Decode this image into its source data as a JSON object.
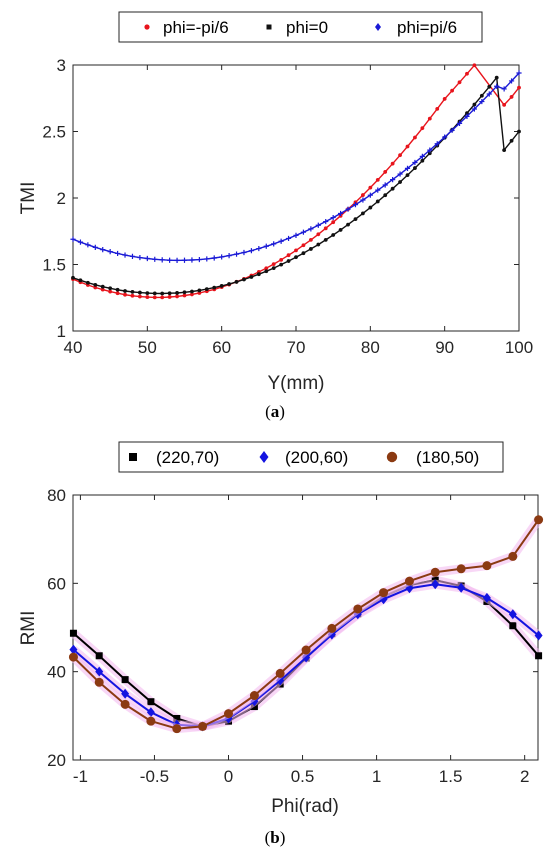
{
  "chart_data": [
    {
      "type": "line",
      "caption_open": "(",
      "caption_letter": "a",
      "caption_close": ")",
      "xlabel": "Y(mm)",
      "ylabel": "TMI",
      "xlim": [
        40,
        100
      ],
      "ylim": [
        1,
        3
      ],
      "xticks": [
        "40",
        "50",
        "60",
        "70",
        "80",
        "90",
        "100"
      ],
      "yticks": [
        "1",
        "1.5",
        "2",
        "2.5",
        "3"
      ],
      "legend_position": "top",
      "x": [
        40,
        41,
        42,
        43,
        44,
        45,
        46,
        47,
        48,
        49,
        50,
        51,
        52,
        53,
        54,
        55,
        56,
        57,
        58,
        59,
        60,
        61,
        62,
        63,
        64,
        65,
        66,
        67,
        68,
        69,
        70,
        71,
        72,
        73,
        74,
        75,
        76,
        77,
        78,
        79,
        80,
        81,
        82,
        83,
        84,
        85,
        86,
        87,
        88,
        89,
        90,
        91,
        92,
        93,
        94,
        95,
        96,
        97,
        98,
        99,
        100
      ],
      "series": [
        {
          "name": "phi=-pi/6",
          "color": "#e8141c",
          "marker": "dot",
          "values": [
            1.39,
            1.367,
            1.346,
            1.327,
            1.311,
            1.296,
            1.284,
            1.273,
            1.265,
            1.259,
            1.255,
            1.253,
            1.253,
            1.256,
            1.26,
            1.267,
            1.275,
            1.286,
            1.299,
            1.313,
            1.33,
            1.349,
            1.37,
            1.392,
            1.417,
            1.444,
            1.472,
            1.503,
            1.535,
            1.57,
            1.606,
            1.645,
            1.685,
            1.727,
            1.772,
            1.818,
            1.866,
            1.916,
            1.968,
            2.022,
            2.078,
            2.136,
            2.196,
            2.258,
            2.322,
            2.387,
            2.455,
            2.525,
            2.597,
            2.67,
            2.745,
            2.807,
            2.87,
            2.934,
            2.998,
            3.063,
            3.129,
            3.195,
            2.7,
            2.76,
            2.83
          ]
        },
        {
          "name": "phi=0",
          "color": "#111111",
          "marker": "dot",
          "values": [
            1.4,
            1.381,
            1.363,
            1.347,
            1.333,
            1.321,
            1.31,
            1.301,
            1.294,
            1.289,
            1.285,
            1.283,
            1.282,
            1.284,
            1.286,
            1.291,
            1.297,
            1.305,
            1.315,
            1.326,
            1.339,
            1.353,
            1.369,
            1.387,
            1.406,
            1.427,
            1.449,
            1.473,
            1.499,
            1.526,
            1.555,
            1.585,
            1.617,
            1.65,
            1.685,
            1.722,
            1.76,
            1.8,
            1.841,
            1.884,
            1.928,
            1.974,
            2.021,
            2.07,
            2.12,
            2.172,
            2.225,
            2.28,
            2.336,
            2.394,
            2.453,
            2.513,
            2.575,
            2.638,
            2.703,
            2.769,
            2.836,
            2.905,
            2.36,
            2.43,
            2.5
          ]
        },
        {
          "name": "phi=pi/6",
          "color": "#1a1ad6",
          "marker": "plus",
          "values": [
            1.69,
            1.668,
            1.648,
            1.629,
            1.612,
            1.597,
            1.583,
            1.571,
            1.561,
            1.552,
            1.545,
            1.539,
            1.535,
            1.532,
            1.531,
            1.532,
            1.534,
            1.537,
            1.542,
            1.549,
            1.557,
            1.567,
            1.578,
            1.59,
            1.604,
            1.62,
            1.637,
            1.655,
            1.675,
            1.696,
            1.719,
            1.743,
            1.768,
            1.795,
            1.823,
            1.853,
            1.884,
            1.916,
            1.95,
            1.985,
            2.021,
            2.059,
            2.098,
            2.138,
            2.18,
            2.223,
            2.267,
            2.313,
            2.36,
            2.408,
            2.458,
            2.509,
            2.561,
            2.614,
            2.669,
            2.725,
            2.782,
            2.84,
            2.82,
            2.88,
            2.94
          ]
        }
      ]
    },
    {
      "type": "line",
      "caption_open": "(",
      "caption_letter": "b",
      "caption_close": ")",
      "xlabel": "Phi(rad)",
      "ylabel": "RMI",
      "xlim": [
        -1.05,
        2.09
      ],
      "ylim": [
        20,
        80
      ],
      "xticks": [
        "-1",
        "-0.5",
        "0",
        "0.5",
        "1",
        "1.5",
        "2"
      ],
      "yticks": [
        "20",
        "40",
        "60",
        "80"
      ],
      "legend_position": "top",
      "x": [
        -1.047,
        -0.873,
        -0.698,
        -0.524,
        -0.349,
        -0.175,
        0,
        0.175,
        0.349,
        0.524,
        0.698,
        0.873,
        1.047,
        1.222,
        1.396,
        1.571,
        1.745,
        1.92,
        2.094
      ],
      "series": [
        {
          "name": "(220,70)",
          "color": "#000000",
          "marker": "square",
          "values": [
            48.7,
            43.6,
            38.2,
            33.2,
            29.4,
            27.6,
            28.8,
            32.1,
            37.2,
            43.1,
            48.6,
            53.1,
            57.0,
            59.6,
            60.7,
            59.4,
            55.9,
            50.4,
            43.6
          ]
        },
        {
          "name": "(200,60)",
          "color": "#1414e0",
          "marker": "diamond",
          "values": [
            45.0,
            40.0,
            35.0,
            30.8,
            28.0,
            27.6,
            29.4,
            33.3,
            38.0,
            43.2,
            48.4,
            53.0,
            56.4,
            58.9,
            59.8,
            59.0,
            56.7,
            53.0,
            48.2
          ]
        },
        {
          "name": "(180,50)",
          "color": "#8b3a12",
          "marker": "circle",
          "values": [
            43.3,
            37.6,
            32.6,
            28.8,
            27.1,
            27.6,
            30.5,
            34.6,
            39.6,
            44.9,
            49.8,
            54.2,
            57.9,
            60.5,
            62.5,
            63.3,
            64.0,
            66.1,
            74.4
          ]
        }
      ]
    }
  ]
}
